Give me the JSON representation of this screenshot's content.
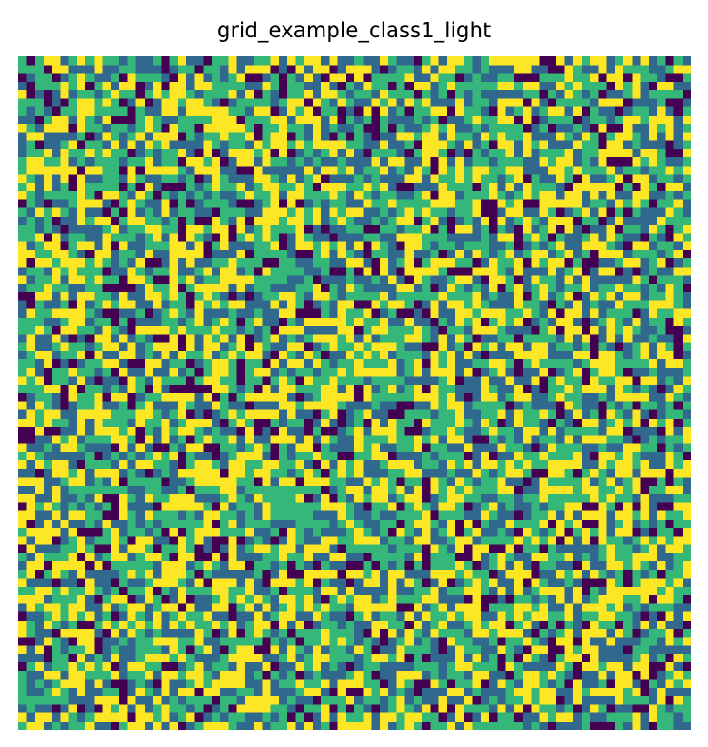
{
  "chart_data": {
    "type": "heatmap",
    "title": "grid_example_class1_light",
    "xlabel": "",
    "ylabel": "",
    "axes_visible": false,
    "grid": false,
    "legend": "none",
    "colormap": "viridis",
    "n_rows": 80,
    "n_cols": 80,
    "levels": [
      0,
      1,
      2,
      3
    ],
    "level_colors": [
      "#440154",
      "#31688e",
      "#35b779",
      "#fde725"
    ],
    "level_weights": [
      0.12,
      0.26,
      0.31,
      0.31
    ],
    "seed": 1
  }
}
